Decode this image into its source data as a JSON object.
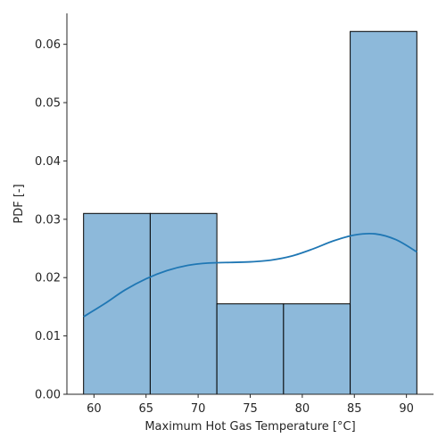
{
  "chart_data": {
    "type": "bar",
    "title": "",
    "xlabel": "Maximum Hot Gas Temperature [°C]",
    "ylabel": "PDF [-]",
    "xlim": [
      57.4,
      92.6
    ],
    "ylim": [
      0,
      0.0653
    ],
    "bin_edges": [
      59.0,
      65.4,
      71.8,
      78.2,
      84.6,
      91.0
    ],
    "values": [
      0.031,
      0.031,
      0.0155,
      0.0155,
      0.0622
    ],
    "xticks": [
      60,
      65,
      70,
      75,
      80,
      85,
      90
    ],
    "xtick_labels": [
      "60",
      "65",
      "70",
      "75",
      "80",
      "85",
      "90"
    ],
    "yticks": [
      0,
      0.01,
      0.02,
      0.03,
      0.04,
      0.05,
      0.06
    ],
    "ytick_labels": [
      "0.00",
      "0.01",
      "0.02",
      "0.03",
      "0.04",
      "0.05",
      "0.06"
    ],
    "kde": {
      "x": [
        59,
        61,
        63,
        65,
        67,
        69,
        71,
        73,
        75,
        77,
        79,
        81,
        83,
        85,
        87,
        89,
        91
      ],
      "y": [
        0.0133,
        0.0155,
        0.0179,
        0.0198,
        0.0212,
        0.0221,
        0.0225,
        0.0226,
        0.0227,
        0.023,
        0.0237,
        0.0249,
        0.0263,
        0.0273,
        0.0275,
        0.0265,
        0.0244
      ]
    },
    "grid": false,
    "colors": {
      "bar_fill": "#8db9da",
      "bar_edge": "#000000",
      "kde_line": "#1f77b4",
      "axis": "#262626"
    }
  }
}
